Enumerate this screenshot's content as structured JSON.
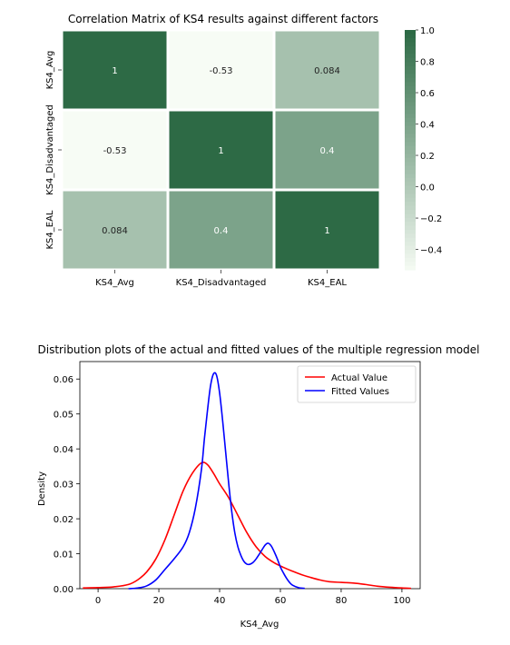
{
  "chart_data": [
    {
      "type": "heatmap",
      "title": "Correlation Matrix of KS4 results against different factors",
      "row_labels": [
        "KS4_Avg",
        "KS4_Disadvantaged",
        "KS4_EAL"
      ],
      "col_labels": [
        "KS4_Avg",
        "KS4_Disadvantaged",
        "KS4_EAL"
      ],
      "values": [
        [
          1,
          -0.53,
          0.084
        ],
        [
          -0.53,
          1,
          0.4
        ],
        [
          0.084,
          0.4,
          1
        ]
      ],
      "cell_labels": [
        [
          "1",
          "-0.53",
          "0.084"
        ],
        [
          "-0.53",
          "1",
          "0.4"
        ],
        [
          "0.084",
          "0.4",
          "1"
        ]
      ],
      "colorbar": {
        "min": -0.53,
        "max": 1,
        "ticks": [
          1.0,
          0.8,
          0.6,
          0.4,
          0.2,
          0.0,
          -0.2,
          -0.4
        ],
        "tick_labels": [
          "1.0",
          "0.8",
          "0.6",
          "0.4",
          "0.2",
          "0.0",
          "−0.2",
          "−0.4"
        ],
        "color_low": "#f7fcf5",
        "color_high": "#2d6a45"
      }
    },
    {
      "type": "line",
      "title": "Distribution plots of the actual and fitted values of the multiple regression model",
      "xlabel": "KS4_Avg",
      "ylabel": "Density",
      "xlim": [
        -6,
        106
      ],
      "ylim": [
        0,
        0.065
      ],
      "xticks": [
        0,
        20,
        40,
        60,
        80,
        100
      ],
      "xtick_labels": [
        "0",
        "20",
        "40",
        "60",
        "80",
        "100"
      ],
      "yticks": [
        0,
        0.01,
        0.02,
        0.03,
        0.04,
        0.05,
        0.06
      ],
      "ytick_labels": [
        "0.00",
        "0.01",
        "0.02",
        "0.03",
        "0.04",
        "0.05",
        "0.06"
      ],
      "legend_position": "top-right",
      "series": [
        {
          "name": "Actual Value",
          "color": "#ff0000",
          "x": [
            -5,
            0,
            5,
            10,
            13,
            16,
            19,
            22,
            25,
            28,
            31,
            34,
            36,
            38,
            40,
            43,
            46,
            49,
            52,
            55,
            58,
            61,
            64,
            67,
            70,
            73,
            76,
            80,
            84,
            88,
            92,
            96,
            100,
            103
          ],
          "y": [
            0.0002,
            0.0003,
            0.0005,
            0.0012,
            0.0025,
            0.0048,
            0.0085,
            0.014,
            0.021,
            0.028,
            0.033,
            0.036,
            0.0355,
            0.033,
            0.03,
            0.026,
            0.021,
            0.016,
            0.012,
            0.0092,
            0.0074,
            0.0061,
            0.005,
            0.004,
            0.0032,
            0.0025,
            0.002,
            0.0018,
            0.0016,
            0.0012,
            0.0007,
            0.0004,
            0.0002,
            0.0001
          ]
        },
        {
          "name": "Fitted Values",
          "color": "#0000ff",
          "x": [
            10,
            13,
            16,
            19,
            22,
            25,
            28,
            30,
            32,
            34,
            35,
            36,
            37,
            38,
            39,
            40,
            41,
            42,
            43,
            44,
            45,
            46,
            47,
            48,
            49,
            50,
            51,
            52,
            53,
            54,
            55,
            56,
            57,
            58,
            59,
            60,
            61,
            62,
            63,
            64,
            66,
            68
          ],
          "y": [
            0.0,
            0.0002,
            0.0008,
            0.0025,
            0.0055,
            0.0085,
            0.012,
            0.016,
            0.023,
            0.034,
            0.043,
            0.051,
            0.058,
            0.0615,
            0.061,
            0.056,
            0.048,
            0.039,
            0.03,
            0.022,
            0.016,
            0.012,
            0.0095,
            0.0078,
            0.007,
            0.007,
            0.0075,
            0.0085,
            0.0098,
            0.0112,
            0.0125,
            0.013,
            0.0122,
            0.0105,
            0.0085,
            0.0062,
            0.0045,
            0.003,
            0.0018,
            0.001,
            0.0003,
            0.0001
          ]
        }
      ]
    }
  ]
}
